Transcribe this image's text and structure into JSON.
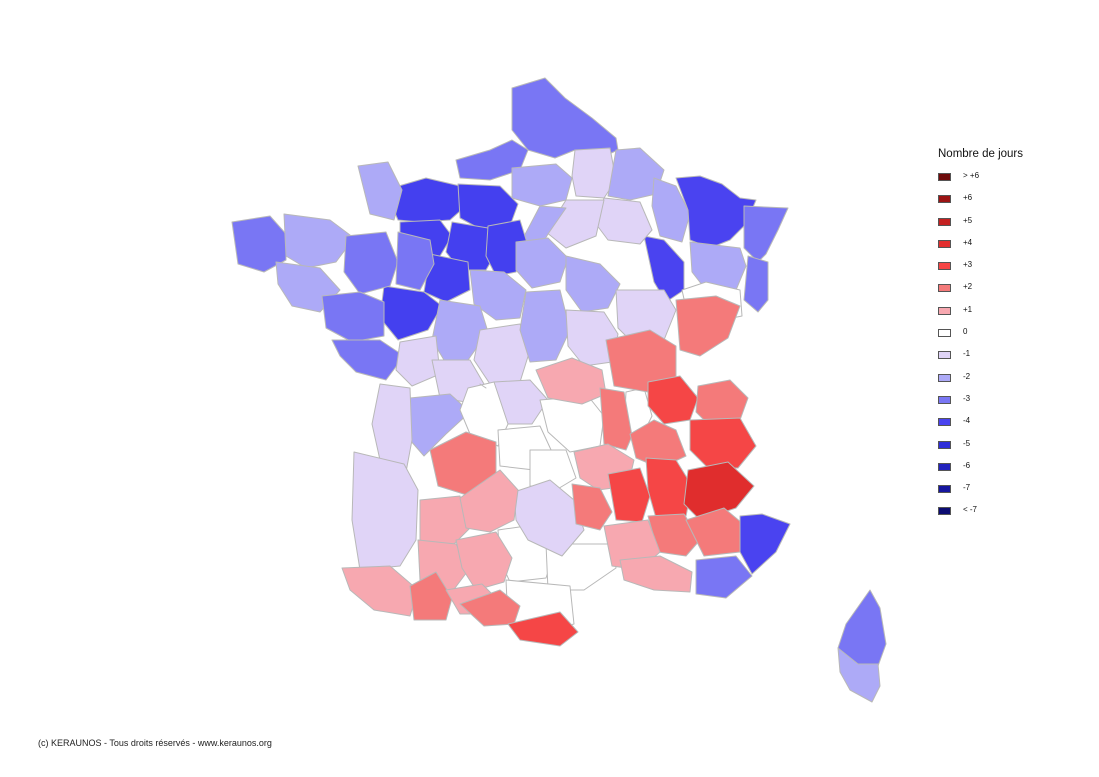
{
  "legend": {
    "title": "Nombre de jours",
    "items": [
      {
        "label": "> +6",
        "color": "#6e0b0b"
      },
      {
        "label": "+6",
        "color": "#9b1414"
      },
      {
        "label": "+5",
        "color": "#c42121"
      },
      {
        "label": "+4",
        "color": "#e22f2f"
      },
      {
        "label": "+3",
        "color": "#f54646"
      },
      {
        "label": "+2",
        "color": "#f47a7a"
      },
      {
        "label": "+1",
        "color": "#f7a8b0"
      },
      {
        "label": "0",
        "color": "#ffffff"
      },
      {
        "label": "-1",
        "color": "#e0d4f7"
      },
      {
        "label": "-2",
        "color": "#adaaf7"
      },
      {
        "label": "-3",
        "color": "#7976f4"
      },
      {
        "label": "-4",
        "color": "#4a43f0"
      },
      {
        "label": "-5",
        "color": "#2f2ed8"
      },
      {
        "label": "-6",
        "color": "#2323bd"
      },
      {
        "label": "-7",
        "color": "#16169e"
      },
      {
        "label": "< -7",
        "color": "#0c0c72"
      }
    ]
  },
  "credit": "(c) KERAUNOS - Tous droits réservés - www.keraunos.org"
}
